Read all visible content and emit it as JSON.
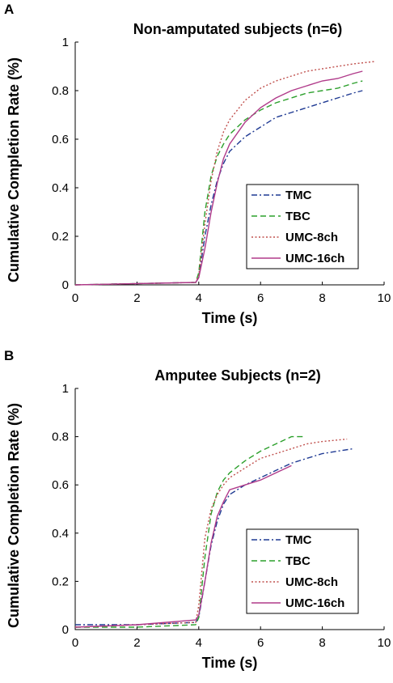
{
  "chart_data": [
    {
      "panel": "A",
      "type": "line",
      "title": "Non-amputated subjects (n=6)",
      "xlabel": "Time (s)",
      "ylabel": "Cumulative Completion Rate (%)",
      "xlim": [
        0,
        10
      ],
      "ylim": [
        0,
        1
      ],
      "xticks": [
        "0",
        "2",
        "4",
        "6",
        "8",
        "10"
      ],
      "yticks": [
        "0",
        "0.2",
        "0.4",
        "0.6",
        "0.8",
        "1"
      ],
      "grid": false,
      "legend_position": "lower-right",
      "series": [
        {
          "name": "TMC",
          "color": "#1f3a93",
          "dash": "dashdot",
          "x": [
            0,
            3.9,
            4.0,
            4.2,
            4.4,
            4.6,
            4.8,
            5.0,
            5.5,
            6.0,
            6.5,
            7.0,
            7.5,
            8.0,
            8.5,
            9.0,
            9.3
          ],
          "y": [
            0.0,
            0.01,
            0.03,
            0.2,
            0.33,
            0.43,
            0.5,
            0.55,
            0.61,
            0.65,
            0.69,
            0.71,
            0.73,
            0.75,
            0.77,
            0.79,
            0.8
          ]
        },
        {
          "name": "TBC",
          "color": "#2ca02c",
          "dash": "dashed",
          "x": [
            0,
            3.9,
            4.0,
            4.2,
            4.4,
            4.6,
            4.8,
            5.0,
            5.5,
            6.0,
            6.5,
            7.0,
            7.5,
            8.0,
            8.5,
            9.0,
            9.3
          ],
          "y": [
            0.0,
            0.01,
            0.05,
            0.3,
            0.45,
            0.53,
            0.58,
            0.62,
            0.68,
            0.72,
            0.75,
            0.77,
            0.79,
            0.8,
            0.81,
            0.83,
            0.84
          ]
        },
        {
          "name": "UMC-8ch",
          "color": "#c0504d",
          "dash": "dotted",
          "x": [
            0,
            3.9,
            4.0,
            4.2,
            4.4,
            4.6,
            4.8,
            5.0,
            5.5,
            6.0,
            6.5,
            7.0,
            7.5,
            8.0,
            8.5,
            9.0,
            9.7
          ],
          "y": [
            0.0,
            0.01,
            0.04,
            0.25,
            0.43,
            0.55,
            0.63,
            0.68,
            0.76,
            0.81,
            0.84,
            0.86,
            0.88,
            0.89,
            0.9,
            0.91,
            0.92
          ]
        },
        {
          "name": "UMC-16ch",
          "color": "#b03a8a",
          "dash": "solid",
          "x": [
            0,
            3.9,
            4.0,
            4.2,
            4.4,
            4.6,
            4.8,
            5.0,
            5.5,
            6.0,
            6.5,
            7.0,
            7.5,
            8.0,
            8.5,
            9.0,
            9.3
          ],
          "y": [
            0.0,
            0.01,
            0.03,
            0.15,
            0.3,
            0.42,
            0.52,
            0.58,
            0.67,
            0.73,
            0.77,
            0.8,
            0.82,
            0.84,
            0.85,
            0.87,
            0.88
          ]
        }
      ]
    },
    {
      "panel": "B",
      "type": "line",
      "title": "Amputee Subjects (n=2)",
      "xlabel": "Time (s)",
      "ylabel": "Cumulative Completion Rate (%)",
      "xlim": [
        0,
        10
      ],
      "ylim": [
        0,
        1
      ],
      "xticks": [
        "0",
        "2",
        "4",
        "6",
        "8",
        "10"
      ],
      "yticks": [
        "0",
        "0.2",
        "0.4",
        "0.6",
        "0.8",
        "1"
      ],
      "grid": false,
      "legend_position": "lower-right",
      "series": [
        {
          "name": "TMC",
          "color": "#1f3a93",
          "dash": "dashdot",
          "x": [
            0,
            2,
            3.9,
            4.0,
            4.2,
            4.4,
            4.6,
            4.8,
            5.0,
            5.5,
            6.0,
            6.5,
            7.0,
            7.5,
            8.0,
            8.5,
            9.0
          ],
          "y": [
            0.02,
            0.02,
            0.03,
            0.05,
            0.2,
            0.35,
            0.45,
            0.52,
            0.56,
            0.6,
            0.63,
            0.66,
            0.69,
            0.71,
            0.73,
            0.74,
            0.75
          ]
        },
        {
          "name": "TBC",
          "color": "#2ca02c",
          "dash": "dashed",
          "x": [
            0,
            2,
            3.9,
            4.0,
            4.2,
            4.4,
            4.6,
            4.8,
            5.0,
            5.5,
            6.0,
            6.5,
            7.0,
            7.4
          ],
          "y": [
            0.01,
            0.01,
            0.02,
            0.05,
            0.3,
            0.48,
            0.57,
            0.62,
            0.65,
            0.7,
            0.74,
            0.77,
            0.8,
            0.8
          ]
        },
        {
          "name": "UMC-8ch",
          "color": "#c0504d",
          "dash": "dotted",
          "x": [
            0,
            2,
            3.9,
            4.0,
            4.2,
            4.4,
            4.6,
            4.8,
            5.0,
            5.5,
            6.0,
            6.5,
            7.0,
            7.5,
            8.0,
            8.8
          ],
          "y": [
            0.01,
            0.02,
            0.03,
            0.1,
            0.38,
            0.5,
            0.56,
            0.6,
            0.63,
            0.67,
            0.71,
            0.73,
            0.75,
            0.77,
            0.78,
            0.79
          ]
        },
        {
          "name": "UMC-16ch",
          "color": "#b03a8a",
          "dash": "solid",
          "x": [
            0,
            2,
            3.9,
            4.0,
            4.2,
            4.4,
            4.6,
            4.8,
            5.0,
            5.5,
            6.0,
            6.5,
            7.0
          ],
          "y": [
            0.01,
            0.02,
            0.04,
            0.06,
            0.2,
            0.36,
            0.47,
            0.53,
            0.58,
            0.6,
            0.62,
            0.65,
            0.68
          ]
        }
      ]
    }
  ]
}
